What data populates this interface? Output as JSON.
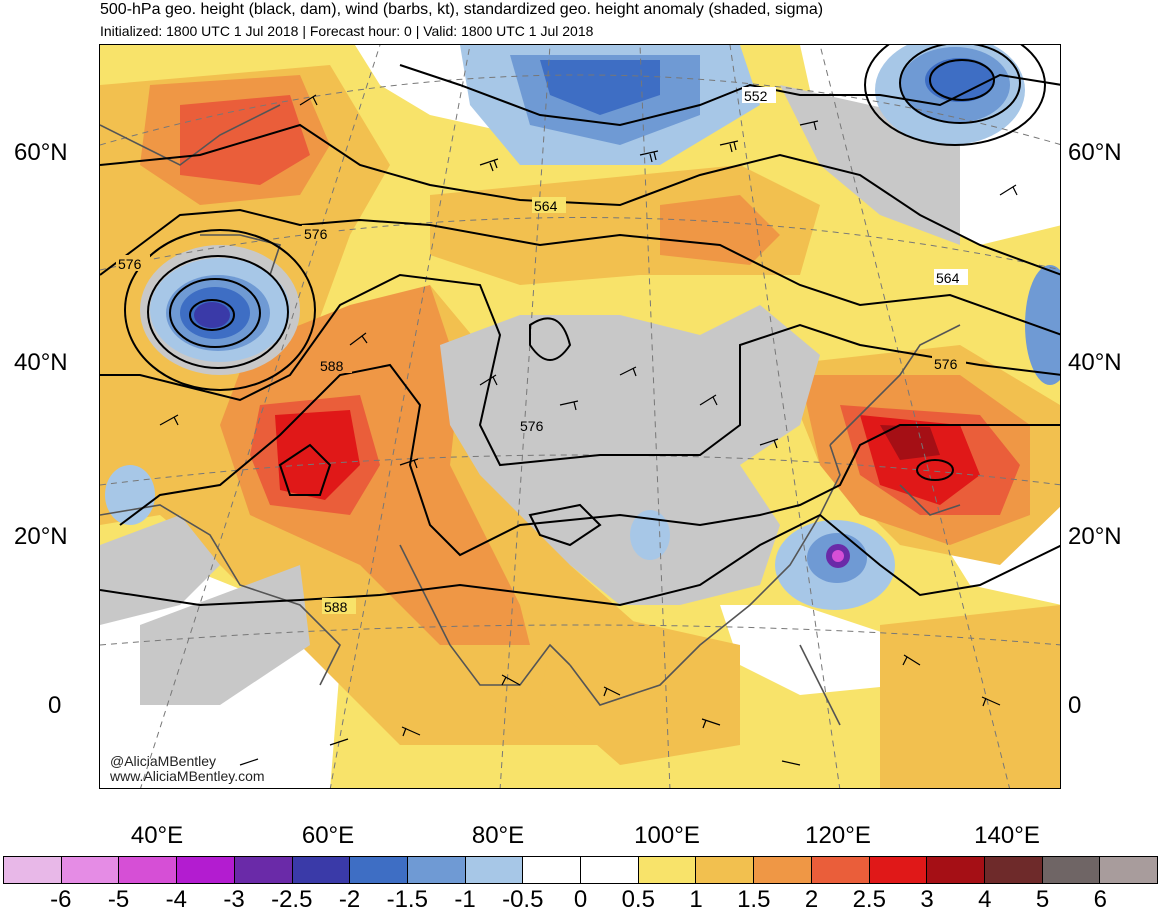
{
  "header": {
    "title": "500-hPa geo. height (black, dam), wind (barbs, kt), standardized geo. height anomaly (shaded, sigma)",
    "subtitle": "Initialized: 1800 UTC 1 Jul 2018 | Forecast hour: 0 | Valid: 1800 UTC 1 Jul 2018"
  },
  "map": {
    "lat_labels_left": [
      "60°N",
      "40°N",
      "20°N",
      "0"
    ],
    "lat_labels_right": [
      "60°N",
      "40°N",
      "20°N",
      "0"
    ],
    "lon_labels": [
      "40°E",
      "60°E",
      "80°E",
      "100°E",
      "120°E",
      "140°E"
    ],
    "contour_labels": [
      "552",
      "564",
      "576",
      "576",
      "588",
      "576",
      "564",
      "576",
      "588"
    ],
    "credits": [
      "@AliciaMBentley",
      "www.AliciaMBentley.com"
    ]
  },
  "colorbar": {
    "colors": [
      "#e8b8e8",
      "#e58ce5",
      "#d64fd6",
      "#b31cd0",
      "#6a2aa8",
      "#3a3aa8",
      "#3e6ec4",
      "#6f9ad4",
      "#a7c7e7",
      "#ffffff",
      "#ffffff",
      "#f8e36a",
      "#f2c04f",
      "#ef9745",
      "#ea5e3a",
      "#e01818",
      "#a50f15",
      "#6e2a2a",
      "#6f6565",
      "#a89c9c"
    ],
    "labels": [
      "-6",
      "-5",
      "-4",
      "-3",
      "-2.5",
      "-2",
      "-1.5",
      "-1",
      "-0.5",
      "0",
      "0.5",
      "1",
      "1.5",
      "2",
      "2.5",
      "3",
      "4",
      "5",
      "6"
    ]
  },
  "colors": {
    "land_gray": "#c8c8c8",
    "contour": "#000000",
    "coast": "#555555"
  }
}
